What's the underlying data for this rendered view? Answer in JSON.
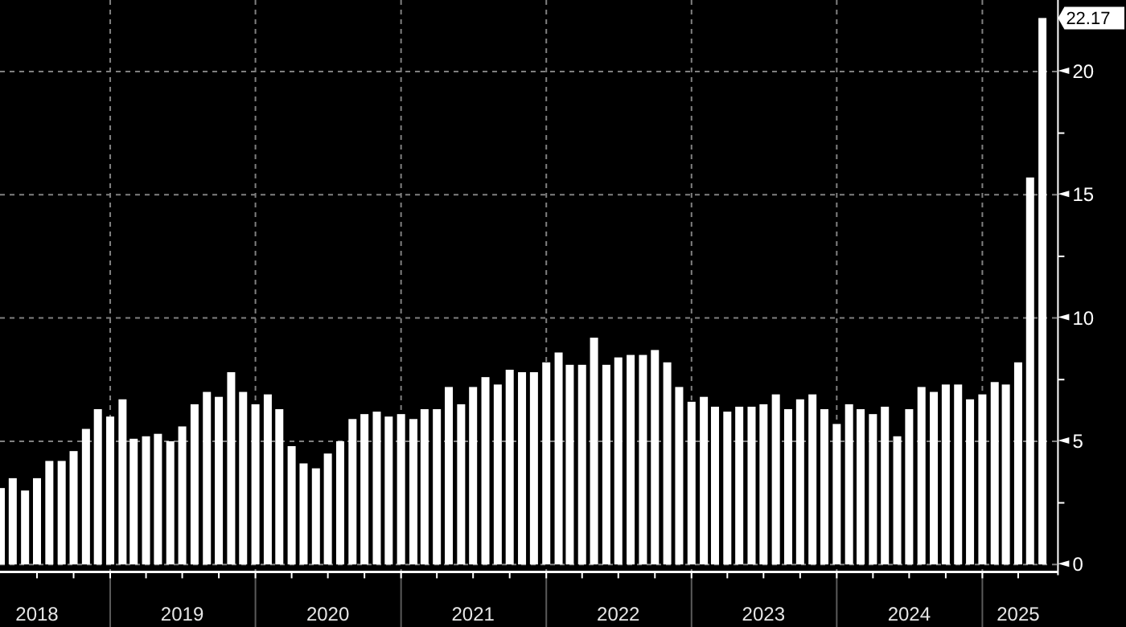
{
  "chart_data": {
    "type": "bar",
    "color": "#ffffff",
    "x": [
      "2018-04",
      "2018-05",
      "2018-06",
      "2018-07",
      "2018-08",
      "2018-09",
      "2018-10",
      "2018-11",
      "2018-12",
      "2019-01",
      "2019-02",
      "2019-03",
      "2019-04",
      "2019-05",
      "2019-06",
      "2019-07",
      "2019-08",
      "2019-09",
      "2019-10",
      "2019-11",
      "2019-12",
      "2020-01",
      "2020-02",
      "2020-03",
      "2020-04",
      "2020-05",
      "2020-06",
      "2020-07",
      "2020-08",
      "2020-09",
      "2020-10",
      "2020-11",
      "2020-12",
      "2021-01",
      "2021-02",
      "2021-03",
      "2021-04",
      "2021-05",
      "2021-06",
      "2021-07",
      "2021-08",
      "2021-09",
      "2021-10",
      "2021-11",
      "2021-12",
      "2022-01",
      "2022-02",
      "2022-03",
      "2022-04",
      "2022-05",
      "2022-06",
      "2022-07",
      "2022-08",
      "2022-09",
      "2022-10",
      "2022-11",
      "2022-12",
      "2023-01",
      "2023-02",
      "2023-03",
      "2023-04",
      "2023-05",
      "2023-06",
      "2023-07",
      "2023-08",
      "2023-09",
      "2023-10",
      "2023-11",
      "2023-12",
      "2024-01",
      "2024-02",
      "2024-03",
      "2024-04",
      "2024-05",
      "2024-06",
      "2024-07",
      "2024-08",
      "2024-09",
      "2024-10",
      "2024-11",
      "2024-12",
      "2025-01",
      "2025-02",
      "2025-03",
      "2025-04",
      "2025-05",
      "2025-06"
    ],
    "values": [
      3.1,
      3.5,
      3.0,
      3.5,
      4.2,
      4.2,
      4.6,
      5.5,
      6.3,
      6.0,
      6.7,
      5.1,
      5.2,
      5.3,
      5.0,
      5.6,
      6.5,
      7.0,
      6.8,
      7.8,
      7.0,
      6.5,
      6.9,
      6.3,
      4.8,
      4.1,
      3.9,
      4.5,
      5.0,
      5.9,
      6.1,
      6.2,
      6.0,
      6.1,
      5.9,
      6.3,
      6.3,
      7.2,
      6.5,
      7.2,
      7.6,
      7.3,
      7.9,
      7.8,
      7.8,
      8.2,
      8.6,
      8.1,
      8.1,
      9.2,
      8.1,
      8.4,
      8.5,
      8.5,
      8.7,
      8.2,
      7.2,
      6.6,
      6.8,
      6.4,
      6.2,
      6.4,
      6.4,
      6.5,
      6.9,
      6.3,
      6.7,
      6.9,
      6.3,
      5.7,
      6.5,
      6.3,
      6.1,
      6.4,
      5.2,
      6.3,
      7.2,
      7.0,
      7.3,
      7.3,
      6.7,
      6.9,
      7.4,
      7.3,
      8.2,
      15.7,
      22.17
    ],
    "xlim": [
      "2018-03-30",
      "2025-07-10"
    ],
    "xticks": [
      {
        "value": "2018-07-01",
        "label": "2018"
      },
      {
        "value": "2018-10-01",
        "label": null
      },
      {
        "value": "2019-01-01",
        "label": null
      },
      {
        "value": "2019-04-01",
        "label": null
      },
      {
        "value": "2019-07-01",
        "label": "2019"
      },
      {
        "value": "2019-10-01",
        "label": null
      },
      {
        "value": "2020-01-01",
        "label": null
      },
      {
        "value": "2020-04-01",
        "label": null
      },
      {
        "value": "2020-07-01",
        "label": "2020"
      },
      {
        "value": "2020-10-01",
        "label": null
      },
      {
        "value": "2021-01-01",
        "label": null
      },
      {
        "value": "2021-04-01",
        "label": null
      },
      {
        "value": "2021-07-01",
        "label": "2021"
      },
      {
        "value": "2021-10-01",
        "label": null
      },
      {
        "value": "2022-01-01",
        "label": null
      },
      {
        "value": "2022-04-01",
        "label": null
      },
      {
        "value": "2022-07-01",
        "label": "2022"
      },
      {
        "value": "2022-10-01",
        "label": null
      },
      {
        "value": "2023-01-01",
        "label": null
      },
      {
        "value": "2023-04-01",
        "label": null
      },
      {
        "value": "2023-07-01",
        "label": "2023"
      },
      {
        "value": "2023-10-01",
        "label": null
      },
      {
        "value": "2024-01-01",
        "label": null
      },
      {
        "value": "2024-04-01",
        "label": null
      },
      {
        "value": "2024-07-01",
        "label": "2024"
      },
      {
        "value": "2024-10-01",
        "label": null
      },
      {
        "value": "2025-01-01",
        "label": null
      },
      {
        "value": "2025-04-01",
        "label": "2025"
      }
    ],
    "ylim": [
      -0.3,
      22.9
    ],
    "yticks": [
      0,
      {
        "value": 2.5,
        "label": null
      },
      5,
      {
        "value": 7.5,
        "label": null
      },
      10,
      {
        "value": 12.5,
        "label": null
      },
      15,
      {
        "value": 17.5,
        "label": null
      },
      20,
      {
        "value": 22.17,
        "label": "22.17"
      }
    ],
    "grid": true
  }
}
